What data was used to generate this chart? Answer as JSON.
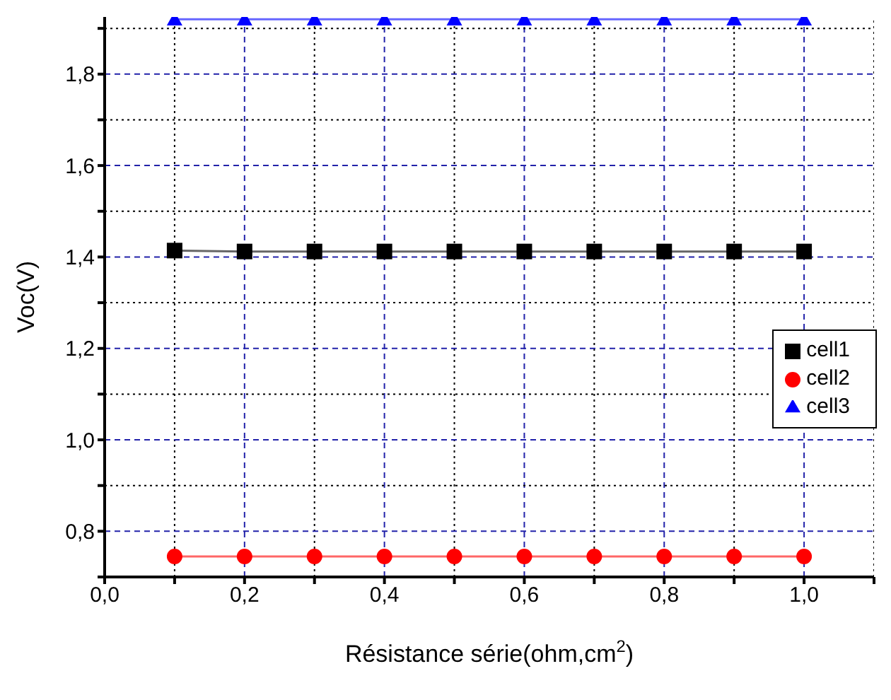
{
  "chart_data": {
    "type": "line",
    "xlabel": "Résistance série(ohm,cm$^{2}$)",
    "ylabel": "Voc(V)",
    "x": [
      0.1,
      0.2,
      0.3,
      0.4,
      0.5,
      0.6,
      0.7,
      0.8,
      0.9,
      1.0
    ],
    "series": [
      {
        "name": "cell1",
        "color": "#000000",
        "marker": "square",
        "values": [
          1.414,
          1.412,
          1.412,
          1.412,
          1.412,
          1.412,
          1.412,
          1.412,
          1.412,
          1.412
        ]
      },
      {
        "name": "cell2",
        "color": "#ff0000",
        "marker": "circle",
        "values": [
          0.745,
          0.745,
          0.745,
          0.745,
          0.745,
          0.745,
          0.745,
          0.745,
          0.745,
          0.745
        ]
      },
      {
        "name": "cell3",
        "color": "#0000ff",
        "marker": "triangle",
        "values": [
          1.92,
          1.92,
          1.92,
          1.92,
          1.92,
          1.92,
          1.92,
          1.92,
          1.92,
          1.92
        ]
      }
    ],
    "xlim": [
      0,
      1.1
    ],
    "xticks": [
      {
        "value": 0,
        "label": "0,0"
      },
      {
        "value": 0.1,
        "label": null
      },
      {
        "value": 0.2,
        "label": "0,2"
      },
      {
        "value": 0.3,
        "label": null
      },
      {
        "value": 0.4,
        "label": "0,4"
      },
      {
        "value": 0.5,
        "label": null
      },
      {
        "value": 0.6,
        "label": "0,6"
      },
      {
        "value": 0.7,
        "label": null
      },
      {
        "value": 0.8,
        "label": "0,8"
      },
      {
        "value": 0.9,
        "label": null
      },
      {
        "value": 1.0,
        "label": "1,0"
      },
      {
        "value": 1.1,
        "label": null
      }
    ],
    "ylim": [
      0.7,
      1.925
    ],
    "yticks": [
      {
        "value": 0.7,
        "label": null
      },
      {
        "value": 0.8,
        "label": "0,8"
      },
      {
        "value": 0.9,
        "label": null
      },
      {
        "value": 1.0,
        "label": "1,0"
      },
      {
        "value": 1.1,
        "label": null
      },
      {
        "value": 1.2,
        "label": "1,2"
      },
      {
        "value": 1.3,
        "label": null
      },
      {
        "value": 1.4,
        "label": "1,4"
      },
      {
        "value": 1.5,
        "label": null
      },
      {
        "value": 1.6,
        "label": "1,6"
      },
      {
        "value": 1.7,
        "label": null
      },
      {
        "value": 1.8,
        "label": "1,8"
      },
      {
        "value": 1.9,
        "label": null
      }
    ],
    "grid": true,
    "legend": "right"
  }
}
